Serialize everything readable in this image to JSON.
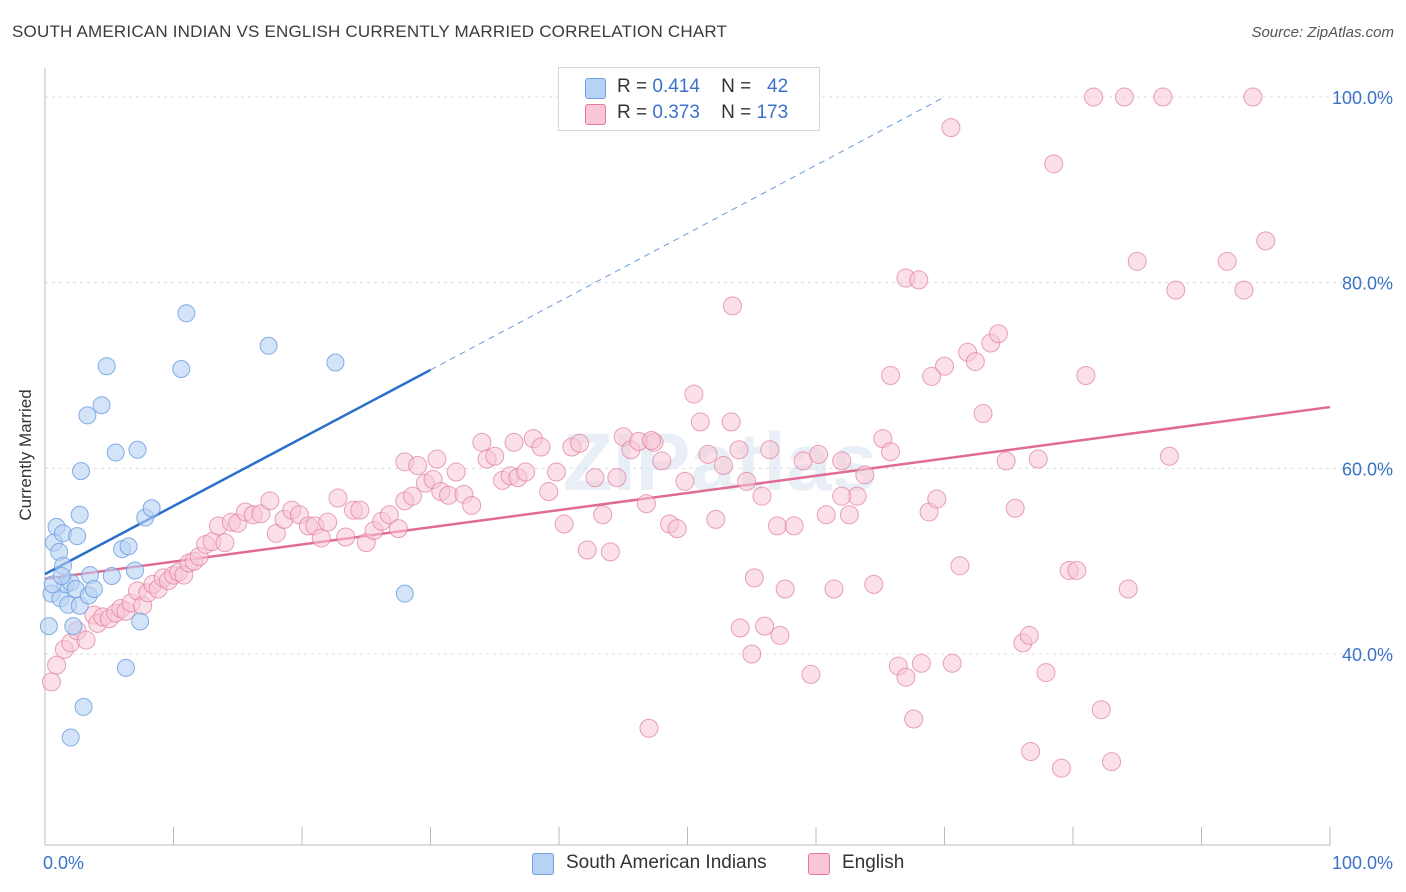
{
  "title": "SOUTH AMERICAN INDIAN VS ENGLISH CURRENTLY MARRIED CORRELATION CHART",
  "source": "Source: ZipAtlas.com",
  "watermark": "ZIPatlas",
  "legend_top": {
    "rows": [
      {
        "r_label": "R =",
        "r_value": "0.414",
        "n_label": "N =",
        "n_value": "42",
        "color": "#a9c7f0"
      },
      {
        "r_label": "R =",
        "r_value": "0.373",
        "n_label": "N =",
        "n_value": "173",
        "color": "#f7b6cb"
      }
    ]
  },
  "legend_bottom": {
    "items": [
      {
        "label": "South American Indians",
        "color": "#a9c7f0"
      },
      {
        "label": "English",
        "color": "#f7b6cb"
      }
    ]
  },
  "chart_data": {
    "type": "scatter",
    "title": "SOUTH AMERICAN INDIAN VS ENGLISH CURRENTLY MARRIED CORRELATION CHART",
    "xlabel": "",
    "ylabel": "Currently Married",
    "xlim": [
      0,
      100
    ],
    "ylim": [
      20,
      100
    ],
    "x_tick_labels": [
      "0.0%",
      "100.0%"
    ],
    "y_ticks": [
      40,
      60,
      80,
      100
    ],
    "y_tick_labels": [
      "40.0%",
      "60.0%",
      "80.0%",
      "100.0%"
    ],
    "grid": true,
    "colors": {
      "blue": "#6fa0e0",
      "blue_fill": "#b8d2f3",
      "blue_line": "#2a6fcb",
      "pink": "#e07b9f",
      "pink_fill": "#f8c6d6",
      "pink_line": "#e06b94",
      "tick_label": "#3a72c8"
    },
    "trendlines": [
      {
        "series": "South American Indians",
        "x": [
          0,
          30
        ],
        "y": [
          48.6,
          70.6
        ],
        "extended_to": [
          70,
          100
        ]
      },
      {
        "series": "English",
        "x": [
          0,
          100
        ],
        "y": [
          48.1,
          66.6
        ]
      }
    ],
    "series": [
      {
        "name": "South American Indians",
        "points": [
          [
            0.3,
            43.0
          ],
          [
            0.5,
            46.5
          ],
          [
            0.7,
            52.0
          ],
          [
            0.9,
            53.7
          ],
          [
            1.1,
            51.0
          ],
          [
            1.2,
            46.0
          ],
          [
            1.4,
            49.5
          ],
          [
            1.4,
            53.0
          ],
          [
            1.6,
            47.5
          ],
          [
            1.8,
            45.3
          ],
          [
            2.0,
            47.7
          ],
          [
            2.0,
            31.0
          ],
          [
            2.2,
            43.0
          ],
          [
            2.4,
            47.0
          ],
          [
            2.5,
            52.7
          ],
          [
            2.7,
            45.2
          ],
          [
            2.7,
            55.0
          ],
          [
            2.8,
            59.7
          ],
          [
            3.0,
            34.3
          ],
          [
            3.3,
            65.7
          ],
          [
            3.4,
            46.3
          ],
          [
            3.5,
            48.5
          ],
          [
            3.8,
            47.0
          ],
          [
            4.4,
            66.8
          ],
          [
            4.8,
            71.0
          ],
          [
            5.2,
            48.4
          ],
          [
            5.5,
            61.7
          ],
          [
            6.0,
            51.3
          ],
          [
            6.3,
            38.5
          ],
          [
            6.5,
            51.6
          ],
          [
            7.0,
            49.0
          ],
          [
            7.2,
            62.0
          ],
          [
            7.4,
            43.5
          ],
          [
            7.8,
            54.7
          ],
          [
            8.3,
            55.7
          ],
          [
            10.6,
            70.7
          ],
          [
            11.0,
            76.7
          ],
          [
            17.4,
            73.2
          ],
          [
            22.6,
            71.4
          ],
          [
            28.0,
            46.5
          ],
          [
            0.6,
            47.5
          ],
          [
            1.3,
            48.4
          ]
        ]
      },
      {
        "name": "English",
        "points": [
          [
            0.5,
            37.0
          ],
          [
            0.9,
            38.8
          ],
          [
            1.5,
            40.5
          ],
          [
            2.0,
            41.2
          ],
          [
            2.5,
            42.5
          ],
          [
            3.2,
            41.5
          ],
          [
            3.8,
            44.2
          ],
          [
            4.1,
            43.3
          ],
          [
            4.5,
            44.0
          ],
          [
            5.0,
            43.8
          ],
          [
            5.5,
            44.4
          ],
          [
            5.9,
            44.9
          ],
          [
            6.3,
            44.6
          ],
          [
            6.7,
            45.5
          ],
          [
            7.2,
            46.8
          ],
          [
            7.6,
            45.2
          ],
          [
            8.0,
            46.6
          ],
          [
            8.4,
            47.5
          ],
          [
            8.8,
            47.0
          ],
          [
            9.2,
            48.2
          ],
          [
            9.6,
            47.9
          ],
          [
            10.0,
            48.5
          ],
          [
            10.4,
            48.8
          ],
          [
            10.8,
            48.5
          ],
          [
            11.2,
            49.8
          ],
          [
            11.6,
            50.0
          ],
          [
            12.0,
            50.5
          ],
          [
            12.5,
            51.8
          ],
          [
            13.0,
            52.1
          ],
          [
            13.5,
            53.8
          ],
          [
            14.0,
            52.0
          ],
          [
            14.5,
            54.2
          ],
          [
            15.0,
            54.1
          ],
          [
            15.6,
            55.3
          ],
          [
            16.2,
            55.0
          ],
          [
            16.8,
            55.1
          ],
          [
            17.5,
            56.5
          ],
          [
            18.0,
            53.0
          ],
          [
            18.6,
            54.5
          ],
          [
            19.2,
            55.5
          ],
          [
            19.8,
            55.0
          ],
          [
            20.5,
            53.8
          ],
          [
            21.0,
            53.8
          ],
          [
            21.5,
            52.5
          ],
          [
            22.0,
            54.2
          ],
          [
            22.8,
            56.8
          ],
          [
            23.4,
            52.6
          ],
          [
            24.0,
            55.5
          ],
          [
            24.5,
            55.5
          ],
          [
            25.0,
            52.0
          ],
          [
            25.6,
            53.3
          ],
          [
            26.2,
            54.3
          ],
          [
            26.8,
            55.0
          ],
          [
            27.5,
            53.5
          ],
          [
            28.0,
            56.5
          ],
          [
            28.6,
            57.0
          ],
          [
            28.0,
            60.7
          ],
          [
            29.0,
            60.3
          ],
          [
            29.6,
            58.4
          ],
          [
            30.2,
            58.8
          ],
          [
            30.8,
            57.5
          ],
          [
            31.4,
            57.1
          ],
          [
            32.0,
            59.6
          ],
          [
            32.6,
            57.2
          ],
          [
            33.2,
            56.0
          ],
          [
            34.0,
            62.8
          ],
          [
            34.4,
            61.0
          ],
          [
            35.0,
            61.3
          ],
          [
            35.6,
            58.7
          ],
          [
            36.2,
            59.2
          ],
          [
            36.8,
            59.0
          ],
          [
            37.4,
            59.6
          ],
          [
            38.0,
            63.2
          ],
          [
            38.6,
            62.3
          ],
          [
            39.2,
            57.5
          ],
          [
            39.8,
            59.6
          ],
          [
            40.4,
            54.0
          ],
          [
            41.0,
            62.3
          ],
          [
            41.6,
            62.7
          ],
          [
            42.2,
            51.2
          ],
          [
            42.8,
            59.0
          ],
          [
            43.4,
            55.0
          ],
          [
            44.0,
            51.0
          ],
          [
            44.5,
            59.0
          ],
          [
            45.0,
            63.4
          ],
          [
            45.6,
            62.0
          ],
          [
            46.2,
            62.9
          ],
          [
            46.8,
            56.2
          ],
          [
            47.4,
            62.8
          ],
          [
            48.0,
            60.8
          ],
          [
            48.6,
            54.0
          ],
          [
            49.2,
            53.5
          ],
          [
            49.8,
            58.6
          ],
          [
            50.5,
            68.0
          ],
          [
            51.0,
            65.0
          ],
          [
            51.6,
            61.5
          ],
          [
            52.2,
            54.5
          ],
          [
            52.8,
            60.3
          ],
          [
            53.4,
            65.0
          ],
          [
            54.0,
            62.0
          ],
          [
            54.6,
            58.6
          ],
          [
            55.2,
            48.2
          ],
          [
            55.8,
            57.0
          ],
          [
            56.4,
            62.0
          ],
          [
            57.0,
            53.8
          ],
          [
            57.6,
            47.0
          ],
          [
            58.3,
            53.8
          ],
          [
            59.0,
            60.8
          ],
          [
            59.6,
            37.8
          ],
          [
            60.2,
            61.5
          ],
          [
            60.8,
            55.0
          ],
          [
            61.4,
            47.0
          ],
          [
            62.0,
            60.8
          ],
          [
            62.6,
            55.0
          ],
          [
            63.2,
            57.0
          ],
          [
            63.8,
            59.3
          ],
          [
            64.5,
            47.5
          ],
          [
            65.2,
            63.2
          ],
          [
            65.8,
            61.8
          ],
          [
            66.4,
            38.7
          ],
          [
            67.0,
            37.5
          ],
          [
            67.6,
            33.0
          ],
          [
            68.2,
            39.0
          ],
          [
            68.8,
            55.3
          ],
          [
            69.4,
            56.7
          ],
          [
            70.0,
            71.0
          ],
          [
            70.6,
            39.0
          ],
          [
            71.2,
            49.5
          ],
          [
            71.8,
            72.5
          ],
          [
            72.4,
            71.5
          ],
          [
            73.0,
            65.9
          ],
          [
            73.6,
            73.5
          ],
          [
            74.2,
            74.5
          ],
          [
            74.8,
            60.8
          ],
          [
            75.5,
            55.7
          ],
          [
            76.1,
            41.2
          ],
          [
            76.7,
            29.5
          ],
          [
            77.3,
            61.0
          ],
          [
            77.9,
            38.0
          ],
          [
            78.5,
            92.8
          ],
          [
            79.1,
            27.7
          ],
          [
            79.7,
            49.0
          ],
          [
            80.3,
            49.0
          ],
          [
            81.0,
            70.0
          ],
          [
            81.6,
            100.0
          ],
          [
            82.2,
            34.0
          ],
          [
            83.0,
            28.4
          ],
          [
            84.3,
            47.0
          ],
          [
            84.0,
            100.0
          ],
          [
            85.0,
            82.3
          ],
          [
            87.0,
            100.0
          ],
          [
            87.5,
            61.3
          ],
          [
            88.0,
            79.2
          ],
          [
            92.0,
            82.3
          ],
          [
            93.3,
            79.2
          ],
          [
            94.0,
            100.0
          ],
          [
            95.0,
            84.5
          ],
          [
            67.0,
            80.5
          ],
          [
            68.0,
            80.3
          ],
          [
            69.0,
            69.9
          ],
          [
            70.5,
            96.7
          ],
          [
            65.8,
            70.0
          ],
          [
            62.0,
            57.0
          ],
          [
            53.5,
            77.5
          ],
          [
            47.2,
            63.0
          ],
          [
            54.1,
            42.8
          ],
          [
            56.0,
            43.0
          ],
          [
            57.2,
            42.0
          ],
          [
            55.0,
            40.0
          ],
          [
            36.5,
            62.8
          ],
          [
            30.5,
            61.0
          ],
          [
            76.6,
            42.0
          ],
          [
            47.0,
            32.0
          ]
        ]
      }
    ]
  }
}
